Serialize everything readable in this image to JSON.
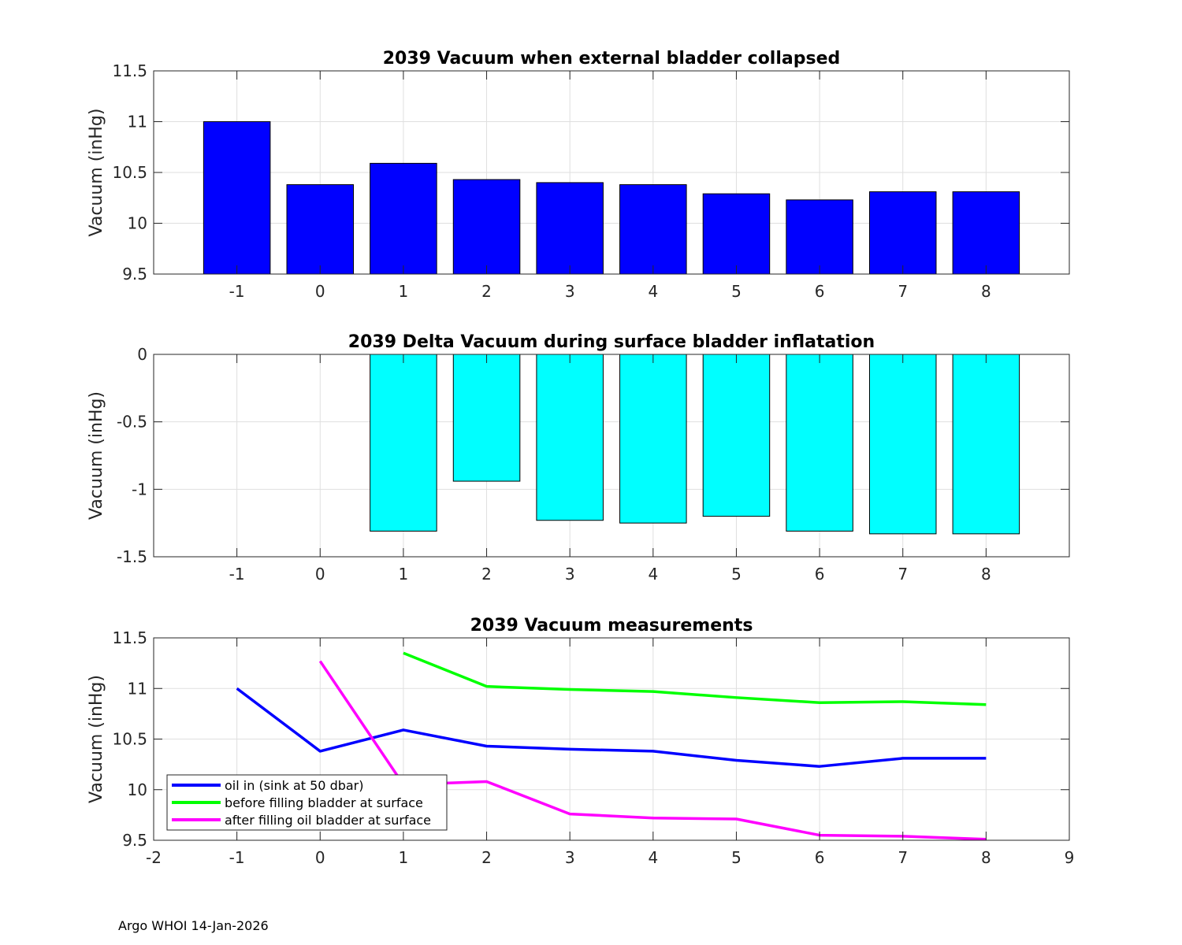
{
  "footer": "Argo WHOI 14-Jan-2026",
  "chart_data": [
    {
      "type": "bar",
      "title": "2039 Vacuum when external bladder collapsed",
      "xlabel": "",
      "ylabel": "Vacuum (inHg)",
      "ylim": [
        9.5,
        11.5
      ],
      "yticks": [
        9.5,
        10,
        10.5,
        11,
        11.5
      ],
      "ytick_labels": [
        "9.5",
        "10",
        "10.5",
        "11",
        "11.5"
      ],
      "xlim": [
        -2,
        9
      ],
      "categories": [
        -1,
        0,
        1,
        2,
        3,
        4,
        5,
        6,
        7,
        8
      ],
      "xtick_labels": [
        "-1",
        "0",
        "1",
        "2",
        "3",
        "4",
        "5",
        "6",
        "7",
        "8"
      ],
      "values": [
        11.0,
        10.38,
        10.59,
        10.43,
        10.4,
        10.38,
        10.29,
        10.23,
        10.31,
        10.31
      ],
      "color": "#0000ff",
      "grid": true
    },
    {
      "type": "bar",
      "title": "2039 Delta Vacuum during surface bladder inflatation",
      "xlabel": "",
      "ylabel": "Vacuum (inHg)",
      "ylim": [
        -1.5,
        0
      ],
      "yticks": [
        -1.5,
        -1,
        -0.5,
        0
      ],
      "ytick_labels": [
        "-1.5",
        "-1",
        "-0.5",
        "0"
      ],
      "xlim": [
        -2,
        9
      ],
      "categories": [
        -1,
        0,
        1,
        2,
        3,
        4,
        5,
        6,
        7,
        8
      ],
      "xtick_labels": [
        "-1",
        "0",
        "1",
        "2",
        "3",
        "4",
        "5",
        "6",
        "7",
        "8"
      ],
      "values": [
        null,
        null,
        -1.31,
        -0.94,
        -1.23,
        -1.25,
        -1.2,
        -1.31,
        -1.33,
        -1.33
      ],
      "color": "#00ffff",
      "grid": true
    },
    {
      "type": "line",
      "title": "2039 Vacuum measurements",
      "xlabel": "",
      "ylabel": "Vacuum (inHg)",
      "ylim": [
        9.5,
        11.5
      ],
      "yticks": [
        9.5,
        10,
        10.5,
        11,
        11.5
      ],
      "ytick_labels": [
        "9.5",
        "10",
        "10.5",
        "11",
        "11.5"
      ],
      "xlim": [
        -2,
        9
      ],
      "xticks": [
        -2,
        -1,
        0,
        1,
        2,
        3,
        4,
        5,
        6,
        7,
        8,
        9
      ],
      "xtick_labels": [
        "-2",
        "-1",
        "0",
        "1",
        "2",
        "3",
        "4",
        "5",
        "6",
        "7",
        "8",
        "9"
      ],
      "grid": true,
      "legend_position": "bottom-left",
      "series": [
        {
          "name": "oil in (sink at 50 dbar)",
          "color": "#0000ff",
          "x": [
            -1,
            0,
            1,
            2,
            3,
            4,
            5,
            6,
            7,
            8
          ],
          "values": [
            11.0,
            10.38,
            10.59,
            10.43,
            10.4,
            10.38,
            10.29,
            10.23,
            10.31,
            10.31
          ]
        },
        {
          "name": "before filling bladder at surface",
          "color": "#00ff00",
          "x": [
            1,
            2,
            3,
            4,
            5,
            6,
            7,
            8
          ],
          "values": [
            11.35,
            11.02,
            10.99,
            10.97,
            10.91,
            10.86,
            10.87,
            10.84
          ]
        },
        {
          "name": "after filling oil bladder at surface",
          "color": "#ff00ff",
          "x": [
            0,
            1,
            2,
            3,
            4,
            5,
            6,
            7,
            8
          ],
          "values": [
            11.27,
            10.05,
            10.08,
            9.76,
            9.72,
            9.71,
            9.55,
            9.54,
            9.51
          ]
        }
      ]
    }
  ]
}
